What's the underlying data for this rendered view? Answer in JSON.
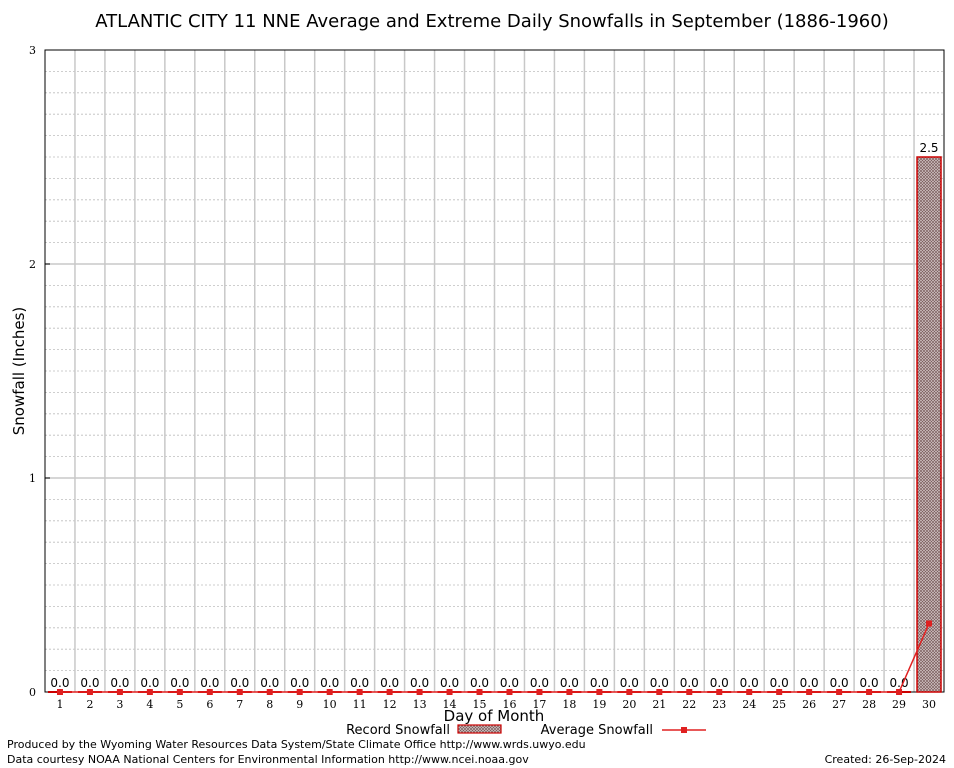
{
  "chart_data": {
    "type": "bar",
    "title": "ATLANTIC CITY 11 NNE Average and Extreme Daily Snowfalls in September (1886-1960)",
    "xlabel": "Day of Month",
    "ylabel": "Snowfall (Inches)",
    "ylim": [
      0,
      3
    ],
    "yticks": [
      "0",
      "1",
      "2",
      "3"
    ],
    "grid": true,
    "categories": [
      "1",
      "2",
      "3",
      "4",
      "5",
      "6",
      "7",
      "8",
      "9",
      "10",
      "11",
      "12",
      "13",
      "14",
      "15",
      "16",
      "17",
      "18",
      "19",
      "20",
      "21",
      "22",
      "23",
      "24",
      "25",
      "26",
      "27",
      "28",
      "29",
      "30"
    ],
    "series": [
      {
        "name": "Record Snowfall",
        "kind": "bar",
        "values": [
          0,
          0,
          0,
          0,
          0,
          0,
          0,
          0,
          0,
          0,
          0,
          0,
          0,
          0,
          0,
          0,
          0,
          0,
          0,
          0,
          0,
          0,
          0,
          0,
          0,
          0,
          0,
          0,
          0,
          2.5
        ],
        "labels": [
          "0.0",
          "0.0",
          "0.0",
          "0.0",
          "0.0",
          "0.0",
          "0.0",
          "0.0",
          "0.0",
          "0.0",
          "0.0",
          "0.0",
          "0.0",
          "0.0",
          "0.0",
          "0.0",
          "0.0",
          "0.0",
          "0.0",
          "0.0",
          "0.0",
          "0.0",
          "0.0",
          "0.0",
          "0.0",
          "0.0",
          "0.0",
          "0.0",
          "0.0",
          "2.5"
        ]
      },
      {
        "name": "Average Snowfall",
        "kind": "line",
        "values": [
          0,
          0,
          0,
          0,
          0,
          0,
          0,
          0,
          0,
          0,
          0,
          0,
          0,
          0,
          0,
          0,
          0,
          0,
          0,
          0,
          0,
          0,
          0,
          0,
          0,
          0,
          0,
          0,
          0,
          0.32
        ]
      }
    ],
    "colors": {
      "bar_fill": "#b5a6a6",
      "bar_edge": "#cc0000",
      "line": "#e02020",
      "grid": "#c8c8c8"
    },
    "legend_placement": "bottom-center"
  },
  "footer": {
    "produced_by": "Produced by the Wyoming Water Resources Data System/State Climate Office http://www.wrds.uwyo.edu",
    "courtesy": "Data courtesy NOAA National Centers for Environmental Information http://www.ncei.noaa.gov",
    "created": "Created:  26-Sep-2024"
  }
}
